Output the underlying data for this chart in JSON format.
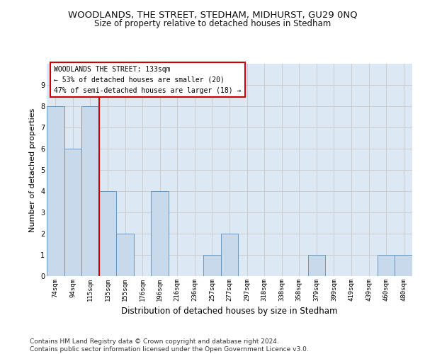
{
  "title": "WOODLANDS, THE STREET, STEDHAM, MIDHURST, GU29 0NQ",
  "subtitle": "Size of property relative to detached houses in Stedham",
  "xlabel": "Distribution of detached houses by size in Stedham",
  "ylabel": "Number of detached properties",
  "categories": [
    "74sqm",
    "94sqm",
    "115sqm",
    "135sqm",
    "155sqm",
    "176sqm",
    "196sqm",
    "216sqm",
    "236sqm",
    "257sqm",
    "277sqm",
    "297sqm",
    "318sqm",
    "338sqm",
    "358sqm",
    "379sqm",
    "399sqm",
    "419sqm",
    "439sqm",
    "460sqm",
    "480sqm"
  ],
  "values": [
    8,
    6,
    8,
    4,
    2,
    0,
    4,
    0,
    0,
    1,
    2,
    0,
    0,
    0,
    0,
    1,
    0,
    0,
    0,
    1,
    1
  ],
  "bar_color": "#c9d9ec",
  "bar_edge_color": "#5b8db8",
  "highlight_index": 2,
  "highlight_line_color": "#cc0000",
  "annotation_text": "WOODLANDS THE STREET: 133sqm\n← 53% of detached houses are smaller (20)\n47% of semi-detached houses are larger (18) →",
  "annotation_box_edge": "#cc0000",
  "ylim": [
    0,
    10
  ],
  "yticks": [
    0,
    1,
    2,
    3,
    4,
    5,
    6,
    7,
    8,
    9,
    10
  ],
  "grid_color": "#cccccc",
  "background_color": "#ffffff",
  "plot_bg_color": "#dde8f5",
  "footer": "Contains HM Land Registry data © Crown copyright and database right 2024.\nContains public sector information licensed under the Open Government Licence v3.0.",
  "title_fontsize": 9.5,
  "subtitle_fontsize": 8.5,
  "axis_label_fontsize": 8,
  "tick_fontsize": 6.5,
  "footer_fontsize": 6.5,
  "annotation_fontsize": 7
}
